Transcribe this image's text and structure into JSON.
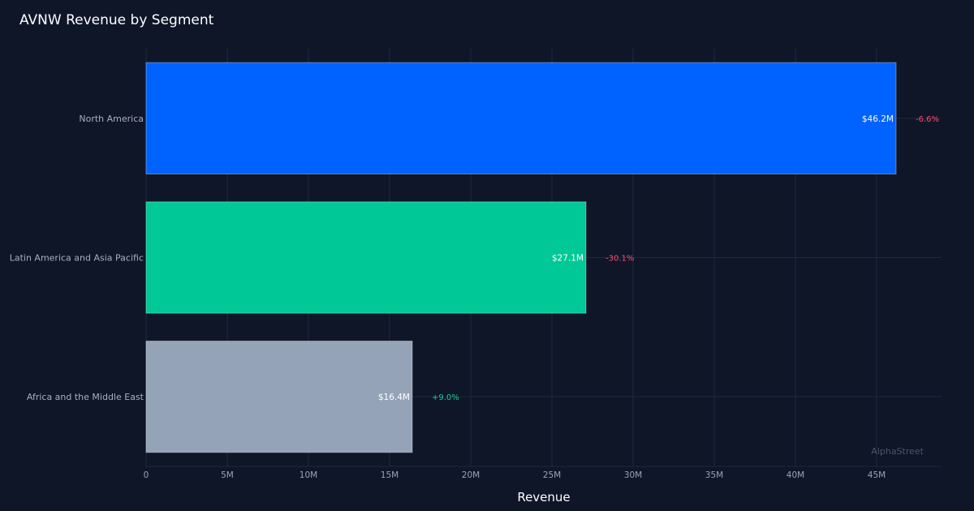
{
  "chart_data": {
    "type": "bar",
    "orientation": "horizontal",
    "title": "AVNW Revenue by Segment",
    "xlabel": "Revenue",
    "ylabel": "",
    "categories": [
      "North America",
      "Latin America and Asia Pacific",
      "Africa and the Middle East"
    ],
    "values": [
      46.2,
      27.1,
      16.4
    ],
    "value_labels": [
      "$46.2M",
      "$27.1M",
      "$16.4M"
    ],
    "changes": [
      "-6.6%",
      "-30.1%",
      "+9.0%"
    ],
    "colors": [
      "#0062ff",
      "#00c896",
      "#94a3b8"
    ],
    "xlim": [
      0,
      49
    ],
    "xticks": [
      0,
      5,
      10,
      15,
      20,
      25,
      30,
      35,
      40,
      45
    ],
    "xtick_labels": [
      "0",
      "5M",
      "10M",
      "15M",
      "20M",
      "25M",
      "30M",
      "35M",
      "40M",
      "45M"
    ],
    "grid": true,
    "positive_color": "#22c993",
    "negative_color": "#ff4d6d"
  },
  "watermark": "AlphaStreet"
}
